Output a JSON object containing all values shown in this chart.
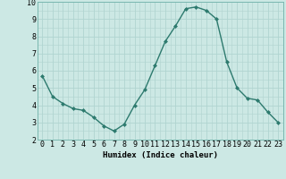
{
  "x": [
    0,
    1,
    2,
    3,
    4,
    5,
    6,
    7,
    8,
    9,
    10,
    11,
    12,
    13,
    14,
    15,
    16,
    17,
    18,
    19,
    20,
    21,
    22,
    23
  ],
  "y": [
    5.7,
    4.5,
    4.1,
    3.8,
    3.7,
    3.3,
    2.8,
    2.5,
    2.9,
    4.0,
    4.9,
    6.3,
    7.7,
    8.6,
    9.6,
    9.7,
    9.5,
    9.0,
    6.5,
    5.0,
    4.4,
    4.3,
    3.6,
    3.0
  ],
  "line_color": "#2d7a6e",
  "marker": "D",
  "marker_size": 2.0,
  "linewidth": 1.0,
  "bg_color": "#cce8e4",
  "grid_color": "#b0d4d0",
  "xlabel": "Humidex (Indice chaleur)",
  "ylim": [
    2,
    10
  ],
  "yticks": [
    2,
    3,
    4,
    5,
    6,
    7,
    8,
    9,
    10
  ],
  "xticks": [
    0,
    1,
    2,
    3,
    4,
    5,
    6,
    7,
    8,
    9,
    10,
    11,
    12,
    13,
    14,
    15,
    16,
    17,
    18,
    19,
    20,
    21,
    22,
    23
  ],
  "xlabel_fontsize": 6.5,
  "tick_fontsize": 6.0
}
